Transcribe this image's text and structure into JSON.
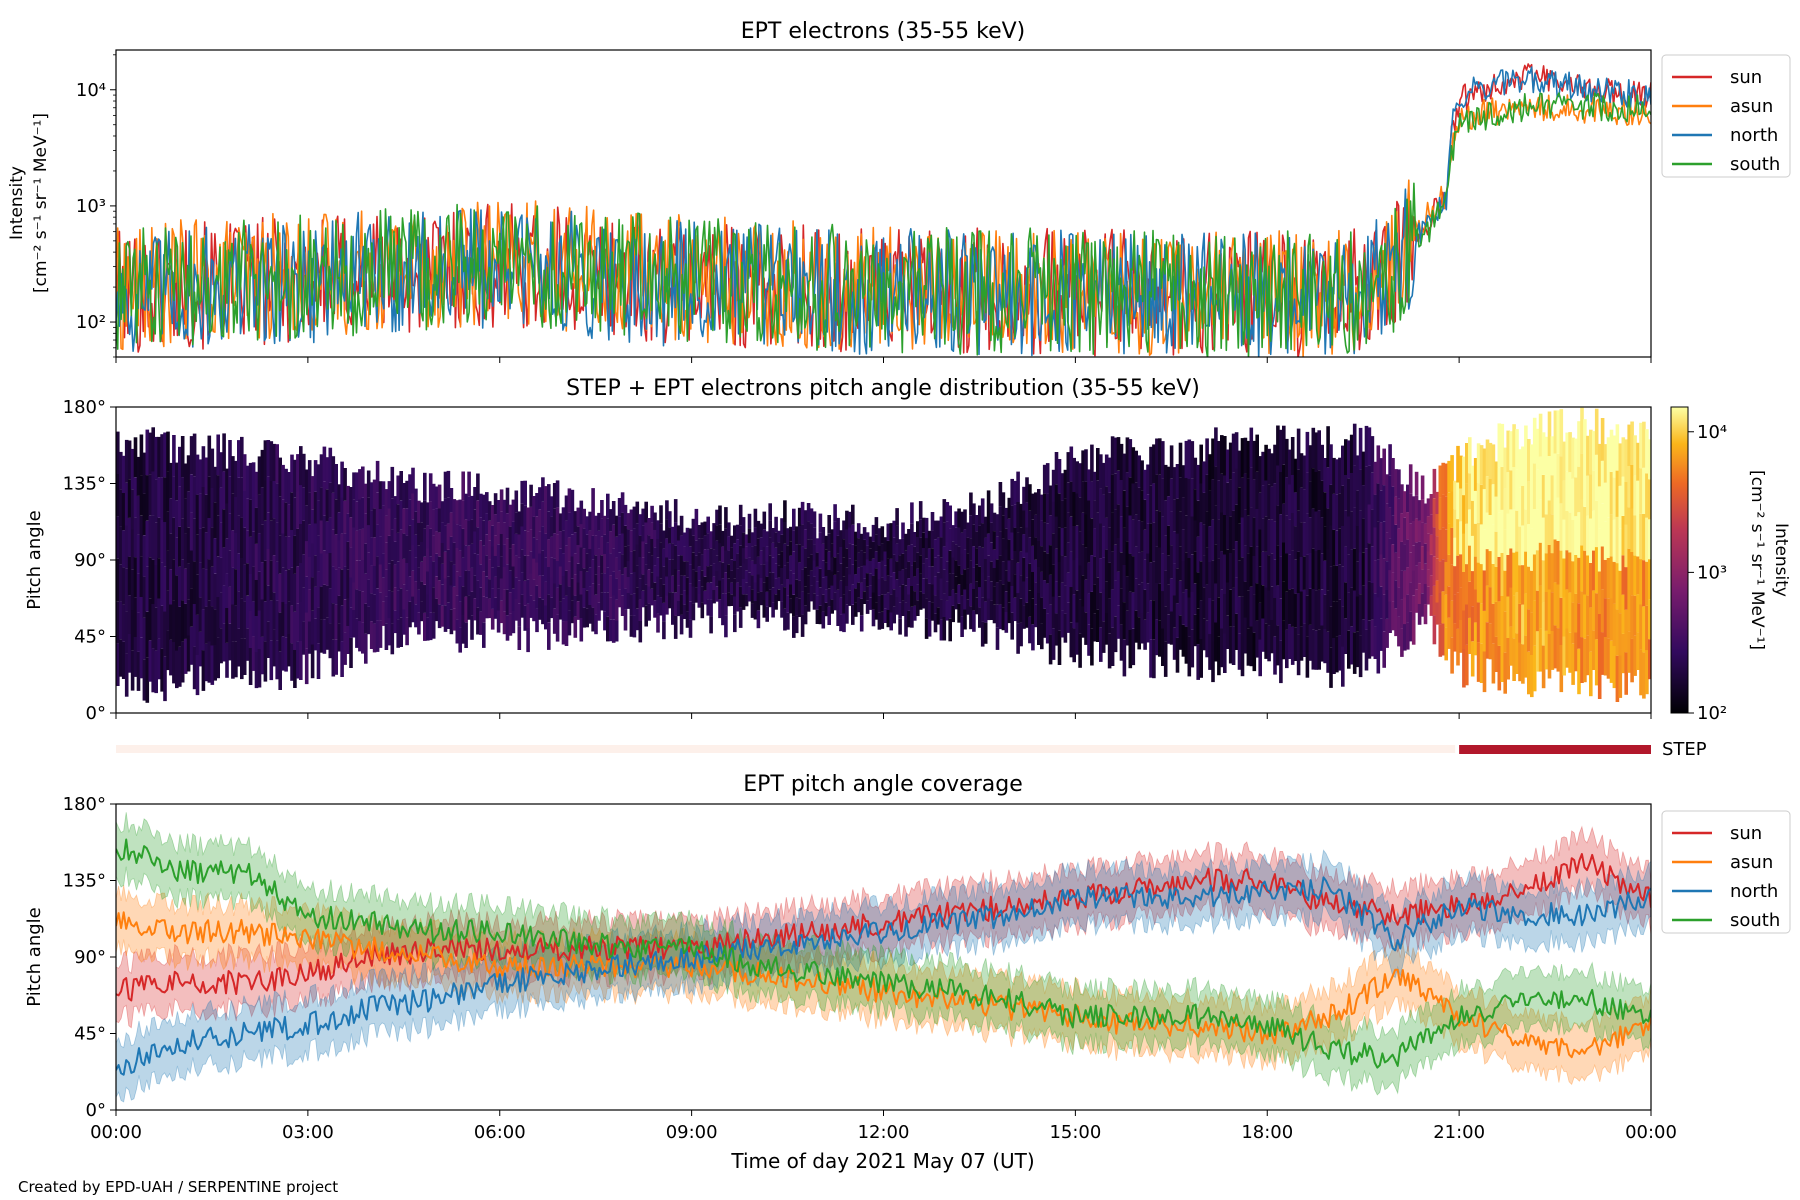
{
  "figure": {
    "credit": "Created by EPD-UAH / SERPENTINE project",
    "xlabel": "Time of day 2021 May 07 (UT)",
    "x_tick_labels": [
      "00:00",
      "03:00",
      "06:00",
      "09:00",
      "12:00",
      "15:00",
      "18:00",
      "21:00",
      "00:00"
    ]
  },
  "chart_data": [
    {
      "type": "line",
      "panel": "intensity",
      "title": "EPT electrons (35-55 keV)",
      "ylabel_line1": "Intensity",
      "ylabel_line2": "[cm⁻² s⁻¹ sr⁻¹ MeV⁻¹]",
      "yscale": "log",
      "ylim": [
        50,
        22000
      ],
      "yticks": [
        100,
        1000,
        10000
      ],
      "ytick_labels": [
        "10²",
        "10³",
        "10⁴"
      ],
      "xlim_hours": [
        0,
        24
      ],
      "legend_position": "outside-right-top",
      "series": [
        {
          "name": "sun",
          "color": "#d62728",
          "hours": [
            0,
            1.5,
            3,
            4.5,
            6,
            7.5,
            9,
            10.5,
            12,
            13.5,
            15,
            16.5,
            18,
            19.5,
            20,
            20.5,
            20.8,
            21,
            21.5,
            22,
            22.5,
            23,
            23.5,
            24
          ],
          "values": [
            180,
            210,
            240,
            280,
            300,
            260,
            220,
            200,
            190,
            185,
            180,
            175,
            170,
            180,
            300,
            700,
            1200,
            8000,
            11000,
            13000,
            12000,
            10000,
            9500,
            9000
          ]
        },
        {
          "name": "asun",
          "color": "#ff7f0e",
          "hours": [
            0,
            1.5,
            3,
            4.5,
            6,
            7.5,
            9,
            10.5,
            12,
            13.5,
            15,
            16.5,
            18,
            19.5,
            20,
            20.5,
            20.8,
            21,
            21.5,
            22,
            22.5,
            23,
            23.5,
            24
          ],
          "values": [
            190,
            230,
            260,
            300,
            330,
            280,
            240,
            215,
            200,
            190,
            185,
            180,
            175,
            185,
            320,
            800,
            1300,
            5500,
            6500,
            7000,
            7000,
            6800,
            6500,
            6500
          ]
        },
        {
          "name": "north",
          "color": "#1f77b4",
          "hours": [
            0,
            1.5,
            3,
            4.5,
            6,
            7.5,
            9,
            10.5,
            12,
            13.5,
            15,
            16.5,
            18,
            19.5,
            20,
            20.5,
            20.8,
            21,
            21.5,
            22,
            22.5,
            23,
            23.5,
            24
          ],
          "values": [
            170,
            200,
            230,
            270,
            300,
            250,
            210,
            195,
            185,
            180,
            175,
            170,
            165,
            175,
            280,
            650,
            1100,
            9000,
            11000,
            12500,
            11500,
            10000,
            9500,
            9000
          ]
        },
        {
          "name": "south",
          "color": "#2ca02c",
          "hours": [
            0,
            1.5,
            3,
            4.5,
            6,
            7.5,
            9,
            10.5,
            12,
            13.5,
            15,
            16.5,
            18,
            19.5,
            20,
            20.5,
            20.8,
            21,
            21.5,
            22,
            22.5,
            23,
            23.5,
            24
          ],
          "values": [
            175,
            220,
            250,
            290,
            320,
            270,
            230,
            205,
            195,
            185,
            180,
            175,
            170,
            180,
            290,
            600,
            1000,
            5000,
            6000,
            7000,
            7500,
            7200,
            7000,
            7000
          ]
        }
      ]
    },
    {
      "type": "heatmap",
      "panel": "pitch_angle_distribution",
      "title": "STEP + EPT electrons pitch angle distribution (35-55 keV)",
      "ylabel": "Pitch angle",
      "ylim": [
        0,
        180
      ],
      "ytick_labels": [
        "0°",
        "45°",
        "90°",
        "135°",
        "180°"
      ],
      "colorbar": {
        "label_line1": "Intensity",
        "label_line2": "[cm⁻² s⁻¹ sr⁻¹ MeV⁻¹]",
        "scale": "log",
        "range": [
          100,
          15000
        ],
        "tick_labels": [
          "10²",
          "10³",
          "10⁴"
        ],
        "colormap": "inferno"
      },
      "step_indicator": {
        "label": "STEP",
        "active_from_hour": 21,
        "active_to_hour": 24,
        "color": "#b2182b",
        "inactive_color": "#fdf0ea"
      },
      "envelope_hours": [
        0,
        1.5,
        3,
        4.5,
        6,
        7.5,
        9,
        10.5,
        12,
        13.5,
        15,
        16.5,
        18,
        19.5,
        20.5,
        21,
        22,
        23,
        24
      ],
      "envelope_min_deg": [
        15,
        20,
        25,
        45,
        45,
        50,
        55,
        55,
        55,
        50,
        35,
        30,
        25,
        25,
        55,
        25,
        20,
        15,
        20
      ],
      "envelope_max_deg": [
        160,
        155,
        150,
        135,
        130,
        125,
        115,
        115,
        110,
        120,
        150,
        155,
        160,
        160,
        130,
        150,
        165,
        170,
        165
      ],
      "mean_intensity": [
        180,
        210,
        240,
        280,
        300,
        260,
        220,
        200,
        190,
        185,
        180,
        175,
        170,
        180,
        700,
        8000,
        12000,
        10000,
        9000
      ]
    },
    {
      "type": "line",
      "panel": "pitch_angle_coverage",
      "title": "EPT pitch angle coverage",
      "ylabel": "Pitch angle",
      "ylim": [
        0,
        180
      ],
      "ytick_labels": [
        "0°",
        "45°",
        "90°",
        "135°",
        "180°"
      ],
      "legend_position": "outside-right-top",
      "band_halfwidth_deg": 16,
      "series": [
        {
          "name": "sun",
          "color": "#d62728",
          "hours": [
            0,
            1,
            2,
            3,
            4,
            5,
            6,
            7,
            8,
            9,
            10,
            11,
            12,
            13,
            14,
            15,
            16,
            17,
            18,
            19,
            20,
            21,
            22,
            23,
            24
          ],
          "values": [
            70,
            75,
            75,
            80,
            90,
            95,
            95,
            95,
            95,
            95,
            100,
            105,
            110,
            115,
            120,
            125,
            130,
            135,
            135,
            120,
            115,
            120,
            130,
            145,
            125
          ]
        },
        {
          "name": "asun",
          "color": "#ff7f0e",
          "hours": [
            0,
            1,
            2,
            3,
            4,
            5,
            6,
            7,
            8,
            9,
            10,
            11,
            12,
            13,
            14,
            15,
            16,
            17,
            18,
            19,
            20,
            21,
            22,
            23,
            24
          ],
          "values": [
            110,
            105,
            105,
            100,
            95,
            90,
            85,
            85,
            85,
            85,
            80,
            75,
            70,
            65,
            60,
            55,
            50,
            50,
            45,
            55,
            80,
            55,
            40,
            35,
            50
          ]
        },
        {
          "name": "north",
          "color": "#1f77b4",
          "hours": [
            0,
            1,
            2,
            3,
            4,
            5,
            6,
            7,
            8,
            9,
            10,
            11,
            12,
            13,
            14,
            15,
            16,
            17,
            18,
            19,
            20,
            21,
            22,
            23,
            24
          ],
          "values": [
            25,
            40,
            45,
            50,
            60,
            65,
            75,
            80,
            85,
            90,
            95,
            100,
            105,
            110,
            115,
            125,
            125,
            125,
            130,
            130,
            100,
            120,
            115,
            115,
            125
          ]
        },
        {
          "name": "south",
          "color": "#2ca02c",
          "hours": [
            0,
            1,
            2,
            3,
            4,
            5,
            6,
            7,
            8,
            9,
            10,
            11,
            12,
            13,
            14,
            15,
            16,
            17,
            18,
            19,
            20,
            21,
            22,
            23,
            24
          ],
          "values": [
            155,
            140,
            140,
            115,
            110,
            105,
            105,
            100,
            95,
            95,
            85,
            80,
            75,
            70,
            65,
            55,
            55,
            55,
            50,
            35,
            30,
            55,
            65,
            65,
            55
          ]
        }
      ]
    }
  ]
}
